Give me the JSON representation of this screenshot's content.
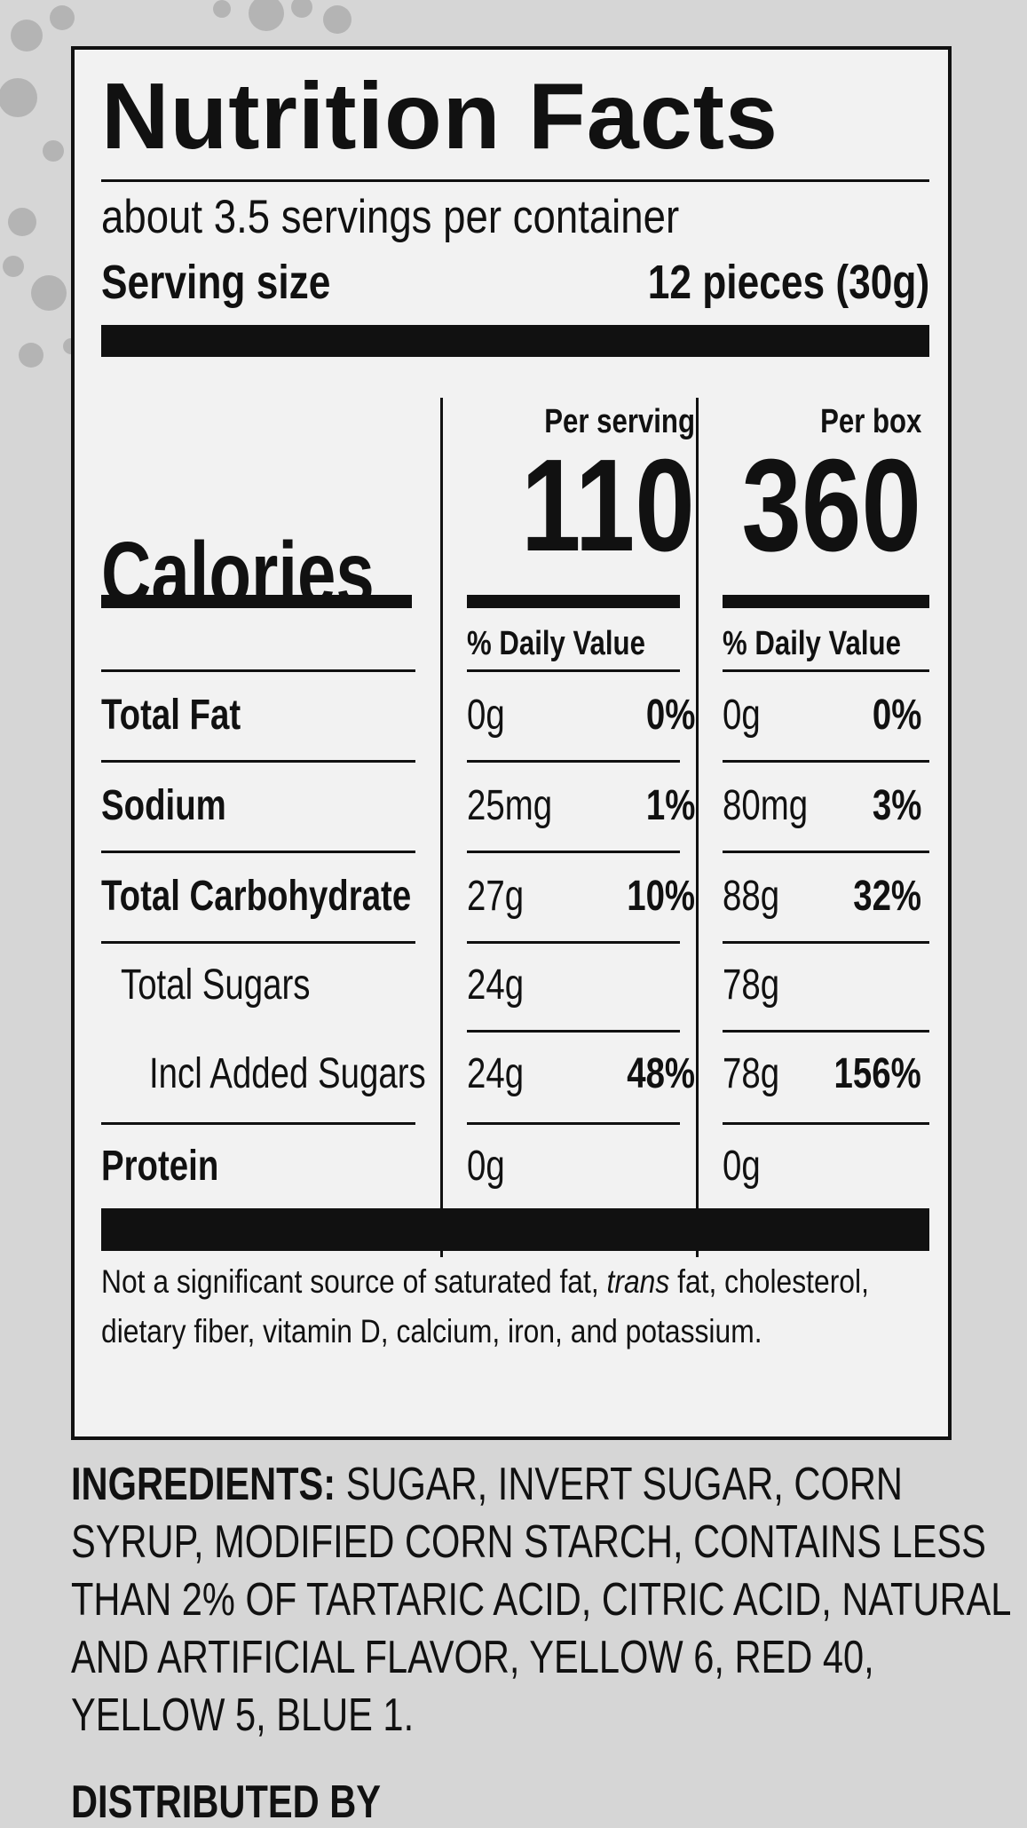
{
  "label": {
    "title": "Nutrition Facts",
    "servings_per_container": "about 3.5 servings per container",
    "serving_size_label": "Serving size",
    "serving_size_value": "12 pieces (30g)",
    "calories_label": "Calories",
    "per_serving_label": "Per serving",
    "per_box_label": "Per box",
    "calories_per_serving": "110",
    "calories_per_box": "360",
    "daily_value_label": "% Daily Value",
    "nutrients": [
      {
        "name": "Total Fat",
        "bold": true,
        "serving_amount": "0g",
        "serving_dv": "0%",
        "box_amount": "0g",
        "box_dv": "0%"
      },
      {
        "name": "Sodium",
        "bold": true,
        "serving_amount": "25mg",
        "serving_dv": "1%",
        "box_amount": "80mg",
        "box_dv": "3%"
      },
      {
        "name": "Total Carbohydrate",
        "bold": true,
        "serving_amount": "27g",
        "serving_dv": "10%",
        "box_amount": "88g",
        "box_dv": "32%"
      },
      {
        "name": "Total Sugars",
        "bold": false,
        "serving_amount": "24g",
        "serving_dv": "",
        "box_amount": "78g",
        "box_dv": ""
      },
      {
        "name": "Incl Added Sugars",
        "bold": false,
        "serving_amount": "24g",
        "serving_dv": "48%",
        "box_amount": "78g",
        "box_dv": "156%"
      },
      {
        "name": "Protein",
        "bold": true,
        "serving_amount": "0g",
        "serving_dv": "",
        "box_amount": "0g",
        "box_dv": ""
      }
    ],
    "footnote_before": "Not a significant source of saturated fat, ",
    "footnote_italic": "trans",
    "footnote_after": " fat, cholesterol, dietary fiber, vitamin D, calcium, iron, and potassium."
  },
  "ingredients": {
    "label": "INGREDIENTS:",
    "text": " SUGAR, INVERT SUGAR, CORN SYRUP, MODIFIED CORN STARCH, CONTAINS LESS THAN 2% OF TARTARIC ACID, CITRIC ACID, NATURAL AND ARTIFICIAL FLAVOR, YELLOW 6, RED 40, YELLOW 5, BLUE 1."
  },
  "distributed_by": "DISTRIBUTED BY"
}
